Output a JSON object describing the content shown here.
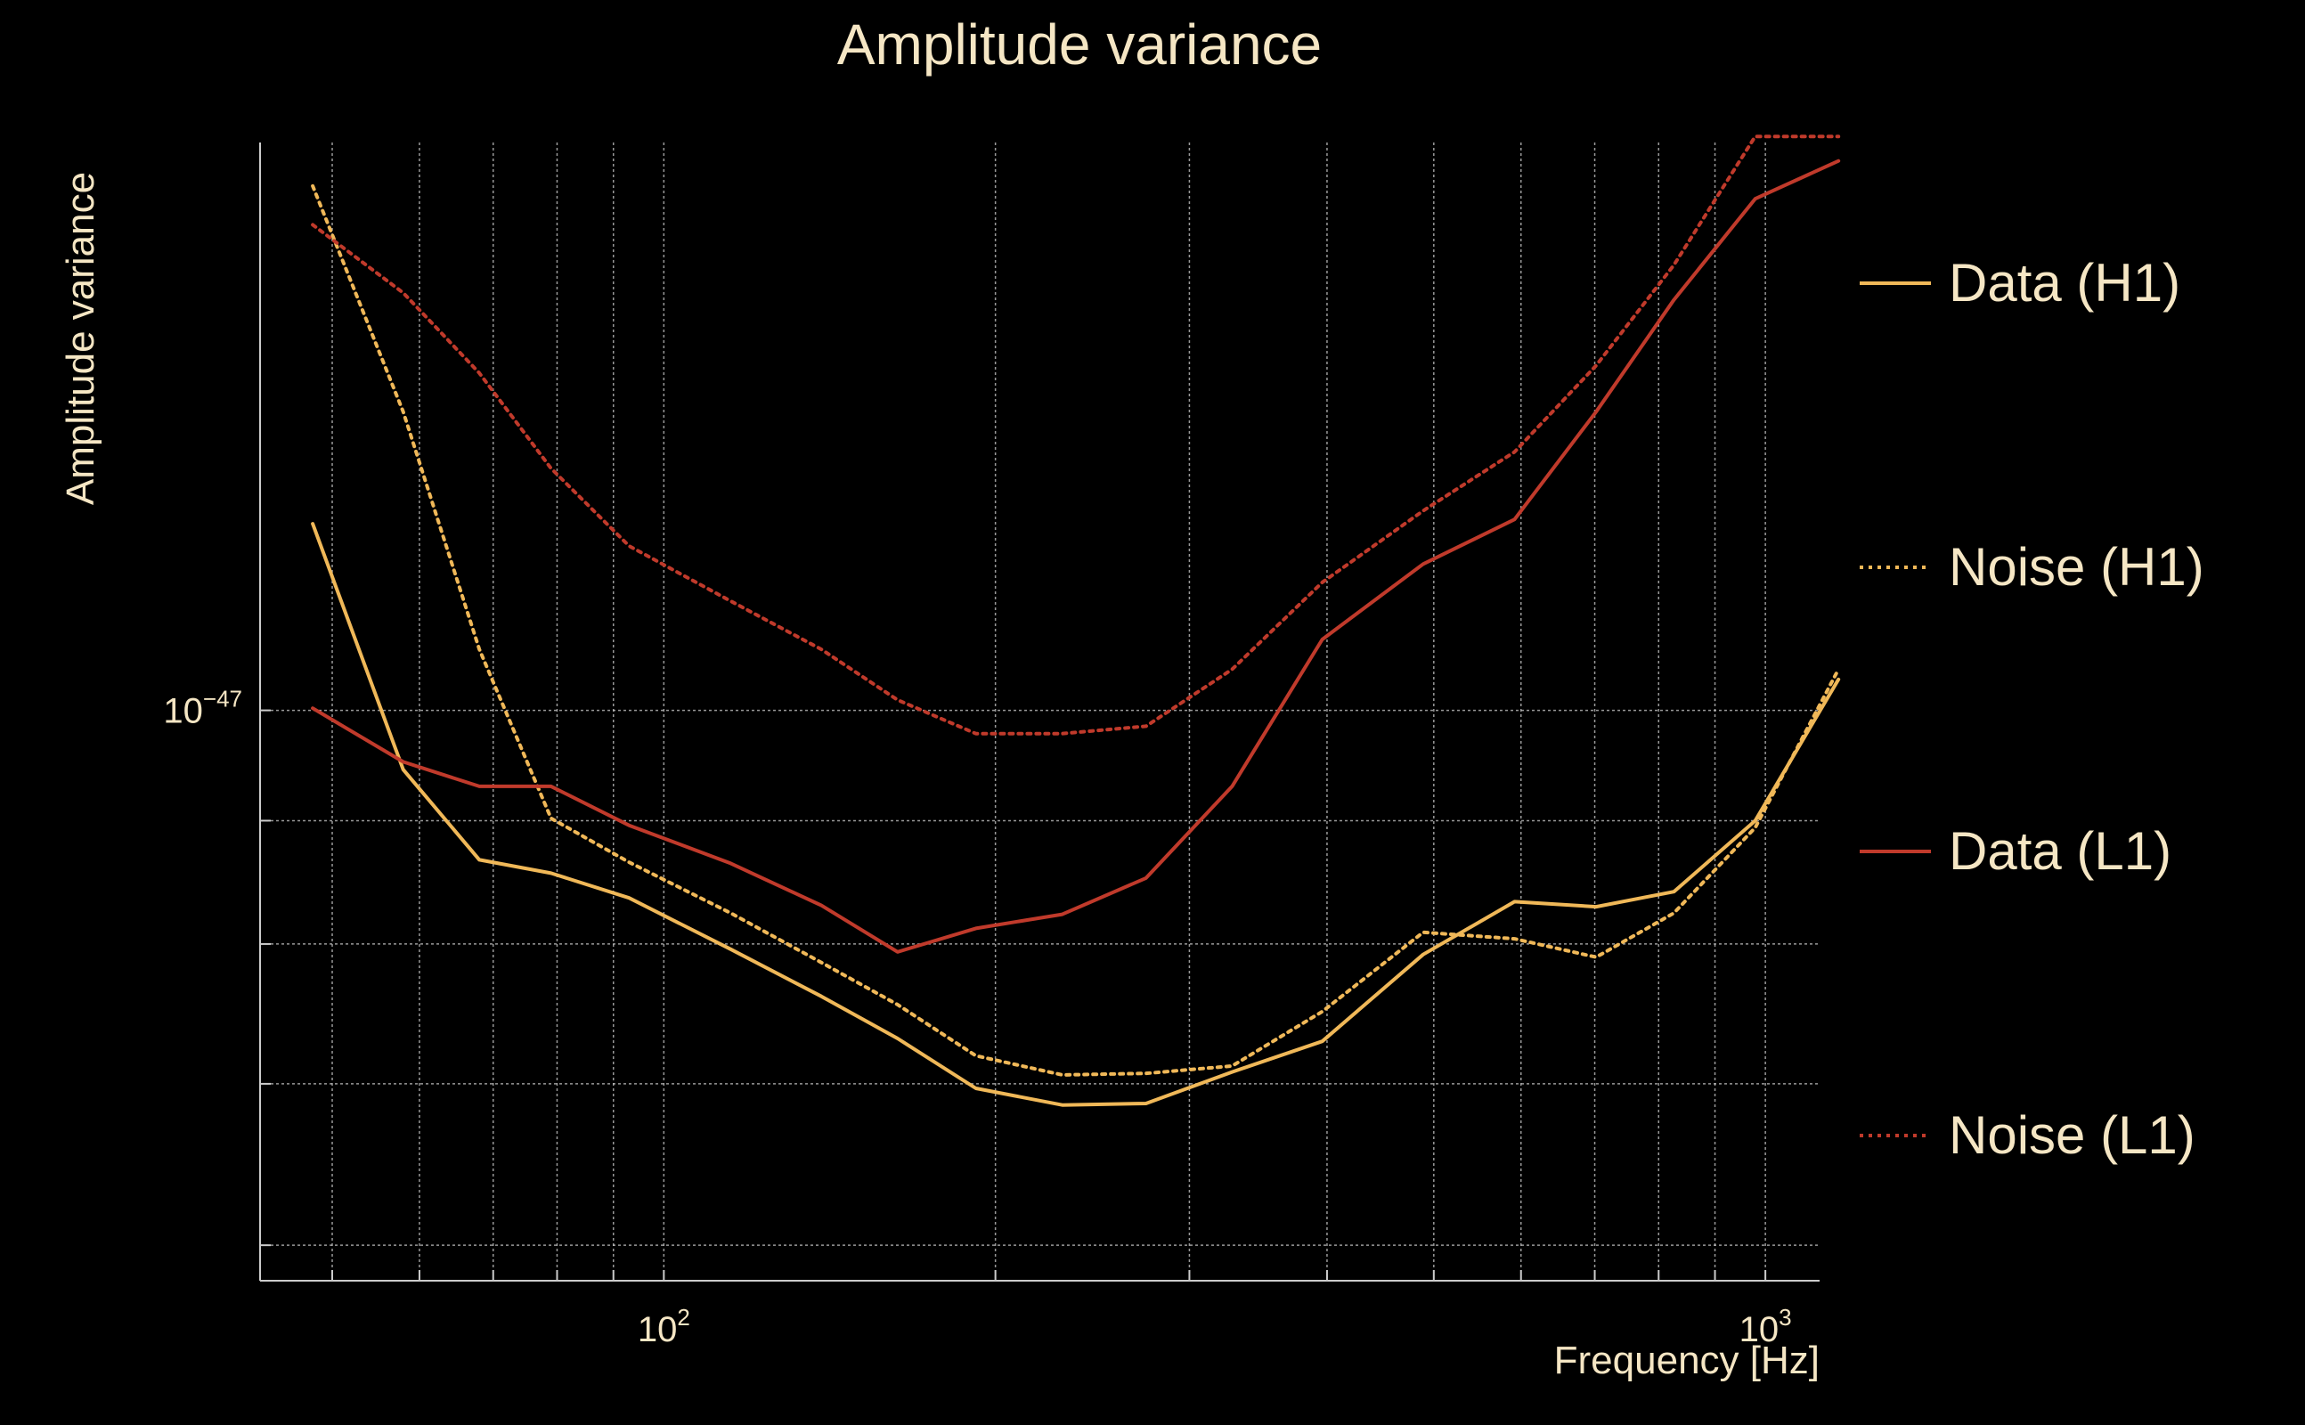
{
  "chart_data": {
    "type": "line",
    "title": "Amplitude variance",
    "xlabel": "Frequency [Hz]",
    "ylabel": "Amplitude variance",
    "xscale": "log",
    "yscale": "log",
    "xlim": [
      43,
      1120
    ],
    "ylim": [
      5.8e-48,
      1.72e-47
    ],
    "x_ticks": [
      {
        "base": "10",
        "exp": "2",
        "value": 100
      },
      {
        "base": "10",
        "exp": "3",
        "value": 1000
      }
    ],
    "y_ticks": [
      {
        "base": "10",
        "exp": "−47",
        "value": 1e-47
      }
    ],
    "grid": true,
    "legend_position": "right",
    "x": [
      48,
      58,
      68,
      79,
      93,
      115,
      139,
      163,
      192,
      230,
      274,
      328,
      396,
      489,
      592,
      702,
      826,
      979,
      1165
    ],
    "series": [
      {
        "name": "Data (H1)",
        "color": "#f0b858",
        "dash": "solid",
        "values": [
          1.195e-47,
          9.45e-48,
          8.67e-48,
          8.56e-48,
          8.36e-48,
          7.96e-48,
          7.61e-48,
          7.31e-48,
          6.97e-48,
          6.86e-48,
          6.87e-48,
          7.08e-48,
          7.29e-48,
          7.92e-48,
          8.33e-48,
          8.29e-48,
          8.41e-48,
          9e-48,
          1.03e-47
        ]
      },
      {
        "name": "Noise (H1)",
        "color": "#f0b858",
        "dash": "dotted",
        "values": [
          1.65e-47,
          1.33e-47,
          1.06e-47,
          9.02e-48,
          8.65e-48,
          8.24e-48,
          7.86e-48,
          7.55e-48,
          7.19e-48,
          7.06e-48,
          7.07e-48,
          7.12e-48,
          7.5e-48,
          8.09e-48,
          8.04e-48,
          7.9e-48,
          8.24e-48,
          8.94e-48,
          1.04e-47
        ]
      },
      {
        "name": "Data (L1)",
        "color": "#c03a2b",
        "dash": "solid",
        "values": [
          1.002e-47,
          9.52e-48,
          9.3e-48,
          9.3e-48,
          8.96e-48,
          8.64e-48,
          8.3e-48,
          7.94e-48,
          8.12e-48,
          8.23e-48,
          8.52e-48,
          9.3e-48,
          1.07e-47,
          1.15e-47,
          1.2e-47,
          1.33e-47,
          1.48e-47,
          1.63e-47,
          1.69e-47
        ]
      },
      {
        "name": "Noise (L1)",
        "color": "#c03a2b",
        "dash": "dotted",
        "values": [
          1.59e-47,
          1.49e-47,
          1.38e-47,
          1.26e-47,
          1.17e-47,
          1.11e-47,
          1.06e-47,
          1.01e-47,
          9.78e-48,
          9.78e-48,
          9.85e-48,
          1.04e-47,
          1.13e-47,
          1.21e-47,
          1.28e-47,
          1.39e-47,
          1.53e-47,
          1.73e-47,
          1.73e-47
        ]
      }
    ]
  }
}
